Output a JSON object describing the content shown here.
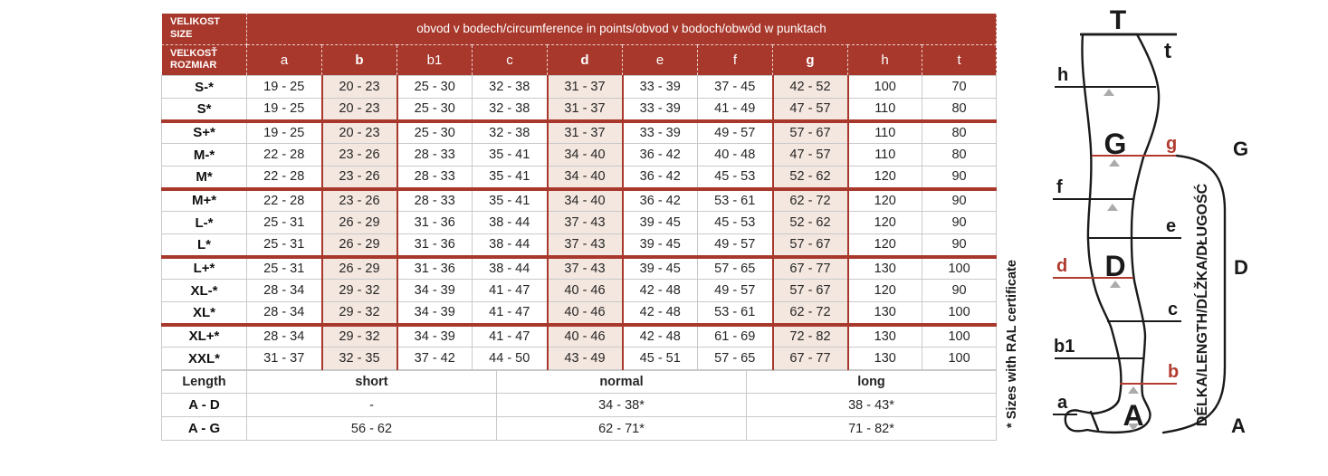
{
  "colors": {
    "brand_red": "#A8382C",
    "line_red": "#B03A2E",
    "highlight_beige": "#F4E7DF",
    "grid_gray": "#c9c9c9"
  },
  "table": {
    "header": {
      "size_top_line1": "VELIKOST",
      "size_top_line2": "SIZE",
      "size_bottom_line1": "VEĽKOSŤ",
      "size_bottom_line2": "ROZMIAR",
      "title": "obvod v bodech/circumference in points/obvod v bodoch/obwód w punktach",
      "columns": [
        "a",
        "b",
        "b1",
        "c",
        "d",
        "e",
        "f",
        "g",
        "h",
        "t"
      ],
      "highlight_columns": [
        "b",
        "d",
        "g"
      ]
    },
    "group_starts": [
      2,
      5,
      8,
      11
    ],
    "rows": [
      {
        "size": "S-*",
        "values": [
          "19 - 25",
          "20 - 23",
          "25 - 30",
          "32 - 38",
          "31 - 37",
          "33 - 39",
          "37 - 45",
          "42 - 52",
          "100",
          "70"
        ]
      },
      {
        "size": "S*",
        "values": [
          "19 - 25",
          "20 - 23",
          "25 - 30",
          "32 - 38",
          "31 - 37",
          "33 - 39",
          "41 - 49",
          "47 - 57",
          "110",
          "80"
        ]
      },
      {
        "size": "S+*",
        "values": [
          "19 - 25",
          "20 - 23",
          "25 - 30",
          "32 - 38",
          "31 - 37",
          "33 - 39",
          "49 - 57",
          "57 - 67",
          "110",
          "80"
        ]
      },
      {
        "size": "M-*",
        "values": [
          "22 - 28",
          "23 - 26",
          "28 - 33",
          "35 - 41",
          "34 - 40",
          "36 - 42",
          "40 - 48",
          "47 - 57",
          "110",
          "80"
        ]
      },
      {
        "size": "M*",
        "values": [
          "22 - 28",
          "23 - 26",
          "28 - 33",
          "35 - 41",
          "34 - 40",
          "36 - 42",
          "45 - 53",
          "52 - 62",
          "120",
          "90"
        ]
      },
      {
        "size": "M+*",
        "values": [
          "22 - 28",
          "23 - 26",
          "28 - 33",
          "35 - 41",
          "34 - 40",
          "36 - 42",
          "53 - 61",
          "62 - 72",
          "120",
          "90"
        ]
      },
      {
        "size": "L-*",
        "values": [
          "25 - 31",
          "26 - 29",
          "31 - 36",
          "38 - 44",
          "37 - 43",
          "39 - 45",
          "45 - 53",
          "52 - 62",
          "120",
          "90"
        ]
      },
      {
        "size": "L*",
        "values": [
          "25 - 31",
          "26 - 29",
          "31 - 36",
          "38 - 44",
          "37 - 43",
          "39 - 45",
          "49 - 57",
          "57 - 67",
          "120",
          "90"
        ]
      },
      {
        "size": "L+*",
        "values": [
          "25 - 31",
          "26 - 29",
          "31 - 36",
          "38 - 44",
          "37 - 43",
          "39 - 45",
          "57 - 65",
          "67 - 77",
          "130",
          "100"
        ]
      },
      {
        "size": "XL-*",
        "values": [
          "28 - 34",
          "29 - 32",
          "34 - 39",
          "41 - 47",
          "40 - 46",
          "42 - 48",
          "49 - 57",
          "57 - 67",
          "120",
          "90"
        ]
      },
      {
        "size": "XL*",
        "values": [
          "28 - 34",
          "29 - 32",
          "34 - 39",
          "41 - 47",
          "40 - 46",
          "42 - 48",
          "53 - 61",
          "62 - 72",
          "130",
          "100"
        ]
      },
      {
        "size": "XL+*",
        "values": [
          "28 - 34",
          "29 - 32",
          "34 - 39",
          "41 - 47",
          "40 - 46",
          "42 - 48",
          "61 - 69",
          "72 - 82",
          "130",
          "100"
        ]
      },
      {
        "size": "XXL*",
        "values": [
          "31 - 37",
          "32 - 35",
          "37 - 42",
          "44 - 50",
          "43 - 49",
          "45 - 51",
          "57 - 65",
          "67 - 77",
          "130",
          "100"
        ]
      }
    ],
    "length_section": {
      "header": [
        "Length",
        "short",
        "normal",
        "long"
      ],
      "rows": [
        {
          "label": "A - D",
          "values": [
            "-",
            "34 - 38*",
            "38 - 43*"
          ]
        },
        {
          "label": "A - G",
          "values": [
            "56 - 62",
            "62 - 71*",
            "71 - 82*"
          ]
        }
      ]
    }
  },
  "diagram": {
    "labels": {
      "t_top": "T",
      "t_small": "t",
      "h": "h",
      "g_big": "G",
      "g_small": "g",
      "g_bracket": "G",
      "f": "f",
      "e": "e",
      "d_big": "D",
      "d_small": "d",
      "d_bracket": "D",
      "c": "c",
      "b1": "b1",
      "b_small": "b",
      "a_small": "a",
      "a_big": "A",
      "a_bracket": "A"
    },
    "length_axis_text": "DÉLKA/LENGTH/DĹŽKA/DŁUGOŚĆ",
    "ral_note": "* Sizes with RAL certificate"
  }
}
